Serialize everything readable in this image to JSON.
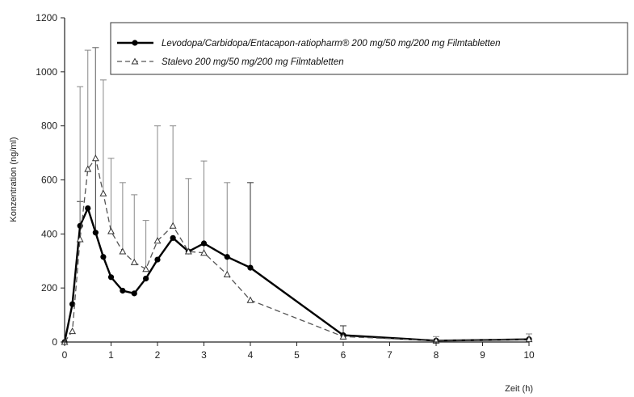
{
  "chart_data": {
    "type": "line",
    "xlabel": "Zeit (h)",
    "ylabel": "Konzentration (ng/ml)",
    "xlim": [
      0,
      10
    ],
    "ylim": [
      0,
      1200
    ],
    "x_ticks": [
      "0",
      "1",
      "2",
      "3",
      "4",
      "5",
      "6",
      "7",
      "8",
      "9",
      "10"
    ],
    "y_ticks": [
      "0",
      "200",
      "400",
      "600",
      "800",
      "1000",
      "1200"
    ],
    "grid": false,
    "legend_position": "top-right",
    "series": [
      {
        "name": "Levodopa/Carbidopa/Entacapon-ratiopharm® 200 mg/50 mg/200 mg Filmtabletten",
        "style": "solid",
        "marker": "filled-circle",
        "color": "#000000",
        "x": [
          0,
          0.167,
          0.333,
          0.5,
          0.667,
          0.833,
          1,
          1.25,
          1.5,
          1.75,
          2,
          2.333,
          2.667,
          3,
          3.5,
          4,
          6,
          8,
          10
        ],
        "y": [
          0,
          140,
          430,
          495,
          405,
          315,
          240,
          190,
          180,
          235,
          305,
          385,
          335,
          365,
          315,
          275,
          25,
          5,
          10
        ],
        "error_upper": [
          0,
          0,
          520,
          0,
          1090,
          0,
          0,
          0,
          0,
          0,
          0,
          0,
          0,
          0,
          0,
          590,
          60,
          0,
          0
        ]
      },
      {
        "name": "Stalevo 200 mg/50 mg/200 mg Filmtabletten",
        "style": "dashed",
        "marker": "open-triangle",
        "color": "#555555",
        "x": [
          0,
          0.167,
          0.333,
          0.5,
          0.667,
          0.833,
          1,
          1.25,
          1.5,
          1.75,
          2,
          2.333,
          2.667,
          3,
          3.5,
          4,
          6,
          8,
          10
        ],
        "y": [
          0,
          40,
          380,
          640,
          680,
          550,
          410,
          335,
          295,
          270,
          375,
          430,
          335,
          330,
          250,
          155,
          20,
          5,
          10
        ],
        "error_upper": [
          0,
          0,
          945,
          1080,
          1090,
          970,
          680,
          590,
          545,
          450,
          800,
          800,
          605,
          670,
          590,
          0,
          0,
          20,
          30
        ]
      }
    ]
  }
}
